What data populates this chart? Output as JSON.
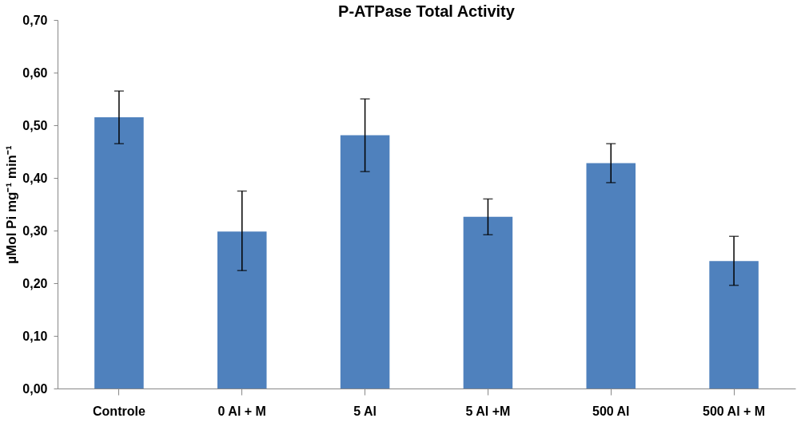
{
  "chart_data": {
    "type": "bar",
    "title": "P-ATPase Total Activity",
    "ylabel": "µMol Pi mg⁻¹ min⁻¹",
    "categories": [
      "Controle",
      "0 Al + M",
      "5 Al",
      "5 Al +M",
      "500 Al",
      "500 Al + M"
    ],
    "values": [
      0.515,
      0.298,
      0.481,
      0.326,
      0.428,
      0.242
    ],
    "errors": [
      [
        0.465,
        0.565
      ],
      [
        0.224,
        0.375
      ],
      [
        0.412,
        0.55
      ],
      [
        0.292,
        0.36
      ],
      [
        0.391,
        0.465
      ],
      [
        0.196,
        0.289
      ]
    ],
    "color": "#4f81bd",
    "ylim": [
      0,
      0.7
    ],
    "yticks": [
      {
        "value": 0,
        "label": "0,00"
      },
      {
        "value": 0.1,
        "label": "0,10"
      },
      {
        "value": 0.2,
        "label": "0,20"
      },
      {
        "value": 0.3,
        "label": "0,30"
      },
      {
        "value": 0.4,
        "label": "0,40"
      },
      {
        "value": 0.5,
        "label": "0,50"
      },
      {
        "value": 0.6,
        "label": "0,60"
      },
      {
        "value": 0.7,
        "label": "0,70"
      }
    ],
    "grid": false
  }
}
